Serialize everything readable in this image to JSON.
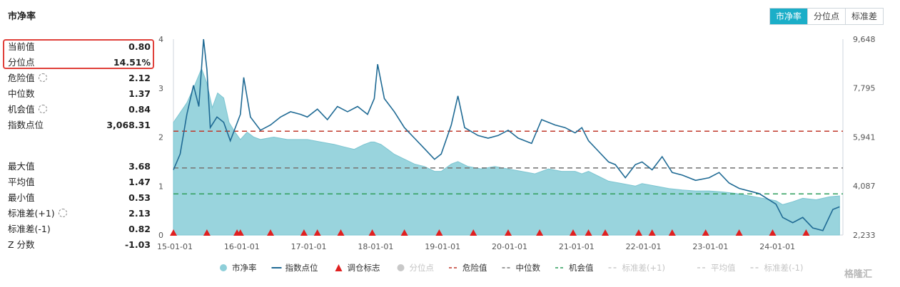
{
  "title": "市净率",
  "tabs": [
    {
      "label": "市净率",
      "active": true
    },
    {
      "label": "分位点",
      "active": false
    },
    {
      "label": "标准差",
      "active": false
    }
  ],
  "stats_top": [
    {
      "label": "当前值",
      "value": "0.80"
    },
    {
      "label": "分位点",
      "value": "14.51%"
    },
    {
      "label": "危险值",
      "value": "2.12",
      "gear": true
    },
    {
      "label": "中位数",
      "value": "1.37"
    },
    {
      "label": "机会值",
      "value": "0.84",
      "gear": true
    },
    {
      "label": "指数点位",
      "value": "3,068.31"
    }
  ],
  "stats_bottom": [
    {
      "label": "最大值",
      "value": "3.68"
    },
    {
      "label": "平均值",
      "value": "1.47"
    },
    {
      "label": "最小值",
      "value": "0.53"
    },
    {
      "label": "标准差(+1)",
      "value": "2.13",
      "gear": true
    },
    {
      "label": "标准差(-1)",
      "value": "0.82"
    },
    {
      "label": "Z 分数",
      "value": "-1.03"
    }
  ],
  "watermark": "格隆汇",
  "colors": {
    "area": "#8ecfd9",
    "index_line": "#1f6a94",
    "danger": "#c0392b",
    "median": "#7a7a7a",
    "opportunity": "#2e9e5b",
    "marker": "#e02020",
    "tab_active": "#1baec8",
    "highlight": "#e0403a"
  },
  "chart_data": {
    "type": "area",
    "left_axis": {
      "min": 0,
      "max": 4,
      "ticks": [
        "0",
        "1",
        "2",
        "3",
        "4"
      ]
    },
    "right_axis": {
      "min": 2233,
      "max": 9648,
      "ticks": [
        "2,233",
        "4,087",
        "5,941",
        "7,795",
        "9,648"
      ]
    },
    "x_range": [
      2015.0,
      2025.0
    ],
    "x_ticks": [
      {
        "x": 2015,
        "label": "15-01-01"
      },
      {
        "x": 2016,
        "label": "16-01-01"
      },
      {
        "x": 2017,
        "label": "17-01-01"
      },
      {
        "x": 2018,
        "label": "18-01-01"
      },
      {
        "x": 2019,
        "label": "19-01-01"
      },
      {
        "x": 2020,
        "label": "20-01-01"
      },
      {
        "x": 2021,
        "label": "21-01-01"
      },
      {
        "x": 2022,
        "label": "22-01-01"
      },
      {
        "x": 2023,
        "label": "23-01-01"
      },
      {
        "x": 2024,
        "label": "24-01-01"
      }
    ],
    "thresholds": {
      "danger": 2.12,
      "median": 1.37,
      "opportunity": 0.84
    },
    "pb_series": {
      "name": "市净率",
      "points": [
        [
          2015.0,
          2.3
        ],
        [
          2015.1,
          2.5
        ],
        [
          2015.2,
          2.7
        ],
        [
          2015.3,
          3.0
        ],
        [
          2015.42,
          3.4
        ],
        [
          2015.5,
          3.1
        ],
        [
          2015.58,
          2.6
        ],
        [
          2015.66,
          2.9
        ],
        [
          2015.75,
          2.8
        ],
        [
          2015.83,
          2.3
        ],
        [
          2015.92,
          2.1
        ],
        [
          2016.0,
          1.95
        ],
        [
          2016.1,
          2.1
        ],
        [
          2016.2,
          2.0
        ],
        [
          2016.3,
          1.95
        ],
        [
          2016.5,
          2.0
        ],
        [
          2016.7,
          1.95
        ],
        [
          2016.9,
          1.95
        ],
        [
          2017.0,
          1.95
        ],
        [
          2017.2,
          1.9
        ],
        [
          2017.4,
          1.85
        ],
        [
          2017.55,
          1.8
        ],
        [
          2017.7,
          1.75
        ],
        [
          2017.85,
          1.85
        ],
        [
          2017.95,
          1.9
        ],
        [
          2018.0,
          1.9
        ],
        [
          2018.1,
          1.85
        ],
        [
          2018.2,
          1.75
        ],
        [
          2018.3,
          1.65
        ],
        [
          2018.45,
          1.55
        ],
        [
          2018.6,
          1.45
        ],
        [
          2018.75,
          1.4
        ],
        [
          2018.9,
          1.3
        ],
        [
          2019.0,
          1.3
        ],
        [
          2019.15,
          1.45
        ],
        [
          2019.25,
          1.5
        ],
        [
          2019.4,
          1.4
        ],
        [
          2019.6,
          1.35
        ],
        [
          2019.8,
          1.4
        ],
        [
          2020.0,
          1.35
        ],
        [
          2020.2,
          1.3
        ],
        [
          2020.4,
          1.25
        ],
        [
          2020.6,
          1.35
        ],
        [
          2020.8,
          1.3
        ],
        [
          2021.0,
          1.3
        ],
        [
          2021.1,
          1.25
        ],
        [
          2021.2,
          1.3
        ],
        [
          2021.35,
          1.2
        ],
        [
          2021.5,
          1.1
        ],
        [
          2021.7,
          1.05
        ],
        [
          2021.9,
          1.0
        ],
        [
          2022.0,
          1.05
        ],
        [
          2022.2,
          1.0
        ],
        [
          2022.4,
          0.95
        ],
        [
          2022.6,
          0.92
        ],
        [
          2022.8,
          0.9
        ],
        [
          2023.0,
          0.9
        ],
        [
          2023.2,
          0.88
        ],
        [
          2023.4,
          0.85
        ],
        [
          2023.6,
          0.8
        ],
        [
          2023.8,
          0.75
        ],
        [
          2024.0,
          0.7
        ],
        [
          2024.1,
          0.62
        ],
        [
          2024.25,
          0.68
        ],
        [
          2024.4,
          0.75
        ],
        [
          2024.6,
          0.72
        ],
        [
          2024.8,
          0.78
        ],
        [
          2024.95,
          0.8
        ]
      ]
    },
    "index_series": {
      "name": "指数点位",
      "points": [
        [
          2015.0,
          4700
        ],
        [
          2015.1,
          5300
        ],
        [
          2015.2,
          6800
        ],
        [
          2015.3,
          7900
        ],
        [
          2015.38,
          7100
        ],
        [
          2015.45,
          9648
        ],
        [
          2015.5,
          8500
        ],
        [
          2015.55,
          6300
        ],
        [
          2015.65,
          6700
        ],
        [
          2015.75,
          6500
        ],
        [
          2015.85,
          5800
        ],
        [
          2016.0,
          6800
        ],
        [
          2016.05,
          8200
        ],
        [
          2016.15,
          6700
        ],
        [
          2016.3,
          6200
        ],
        [
          2016.45,
          6400
        ],
        [
          2016.6,
          6700
        ],
        [
          2016.75,
          6900
        ],
        [
          2016.9,
          6800
        ],
        [
          2017.0,
          6700
        ],
        [
          2017.15,
          7000
        ],
        [
          2017.3,
          6600
        ],
        [
          2017.45,
          7100
        ],
        [
          2017.6,
          6900
        ],
        [
          2017.75,
          7100
        ],
        [
          2017.9,
          6800
        ],
        [
          2018.0,
          7400
        ],
        [
          2018.05,
          8700
        ],
        [
          2018.15,
          7400
        ],
        [
          2018.3,
          6900
        ],
        [
          2018.45,
          6300
        ],
        [
          2018.6,
          5900
        ],
        [
          2018.75,
          5500
        ],
        [
          2018.9,
          5100
        ],
        [
          2019.0,
          5300
        ],
        [
          2019.15,
          6400
        ],
        [
          2019.25,
          7500
        ],
        [
          2019.35,
          6300
        ],
        [
          2019.55,
          6000
        ],
        [
          2019.7,
          5900
        ],
        [
          2019.85,
          6000
        ],
        [
          2020.0,
          6200
        ],
        [
          2020.15,
          5900
        ],
        [
          2020.35,
          5700
        ],
        [
          2020.5,
          6600
        ],
        [
          2020.7,
          6400
        ],
        [
          2020.85,
          6300
        ],
        [
          2021.0,
          6100
        ],
        [
          2021.1,
          6300
        ],
        [
          2021.2,
          5800
        ],
        [
          2021.35,
          5400
        ],
        [
          2021.5,
          5000
        ],
        [
          2021.6,
          4900
        ],
        [
          2021.75,
          4400
        ],
        [
          2021.9,
          4900
        ],
        [
          2022.0,
          5000
        ],
        [
          2022.15,
          4700
        ],
        [
          2022.3,
          5200
        ],
        [
          2022.45,
          4600
        ],
        [
          2022.6,
          4500
        ],
        [
          2022.8,
          4300
        ],
        [
          2023.0,
          4400
        ],
        [
          2023.15,
          4600
        ],
        [
          2023.3,
          4200
        ],
        [
          2023.45,
          4000
        ],
        [
          2023.6,
          3900
        ],
        [
          2023.75,
          3800
        ],
        [
          2024.0,
          3400
        ],
        [
          2024.1,
          2900
        ],
        [
          2024.25,
          2700
        ],
        [
          2024.4,
          2900
        ],
        [
          2024.55,
          2500
        ],
        [
          2024.7,
          2400
        ],
        [
          2024.85,
          3200
        ],
        [
          2024.95,
          3300
        ]
      ]
    },
    "markers": {
      "name": "调仓标志",
      "x": [
        2015.0,
        2015.5,
        2015.95,
        2016.0,
        2016.45,
        2016.95,
        2017.15,
        2017.5,
        2017.97,
        2018.45,
        2018.97,
        2019.48,
        2020.0,
        2020.47,
        2020.97,
        2021.2,
        2021.45,
        2021.95,
        2022.15,
        2022.45,
        2022.95,
        2023.45,
        2023.95,
        2024.45
      ]
    },
    "legend": [
      {
        "label": "市净率",
        "kind": "dot",
        "color": "#8ecfd9",
        "dim": false
      },
      {
        "label": "指数点位",
        "kind": "line",
        "color": "#1f6a94",
        "dim": false
      },
      {
        "label": "调仓标志",
        "kind": "triangle",
        "color": "#e02020",
        "dim": false
      },
      {
        "label": "分位点",
        "kind": "dot",
        "color": "#c8c8c8",
        "dim": true
      },
      {
        "label": "危险值",
        "kind": "dash",
        "color": "#c0392b",
        "dim": false
      },
      {
        "label": "中位数",
        "kind": "dash",
        "color": "#7a7a7a",
        "dim": false
      },
      {
        "label": "机会值",
        "kind": "dash",
        "color": "#2e9e5b",
        "dim": false
      },
      {
        "label": "标准差(+1)",
        "kind": "dash",
        "color": "#cccccc",
        "dim": true
      },
      {
        "label": "平均值",
        "kind": "dash",
        "color": "#cccccc",
        "dim": true
      },
      {
        "label": "标准差(-1)",
        "kind": "dash",
        "color": "#cccccc",
        "dim": true
      }
    ]
  }
}
